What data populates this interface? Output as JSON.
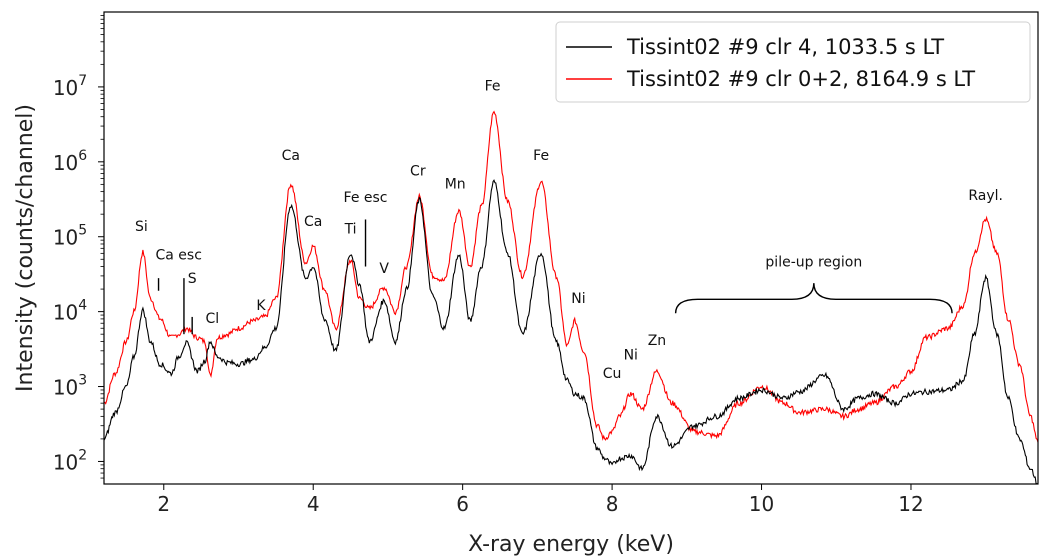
{
  "chart_data": {
    "type": "line",
    "title": "",
    "xlabel": "X-ray energy (keV)",
    "ylabel": "Intensity (counts/channel)",
    "xlim": [
      1.2,
      13.7
    ],
    "ylim": [
      50,
      100000000
    ],
    "yscale": "log",
    "grid": false,
    "legend_position": "top-right",
    "x_ticks": [
      2,
      4,
      6,
      8,
      10,
      12
    ],
    "x_tick_labels": [
      "2",
      "4",
      "6",
      "8",
      "10",
      "12"
    ],
    "y_ticks": [
      100,
      1000,
      10000,
      100000,
      1000000,
      10000000
    ],
    "y_tick_labels": [
      {
        "base": "10",
        "exp": "2"
      },
      {
        "base": "10",
        "exp": "3"
      },
      {
        "base": "10",
        "exp": "4"
      },
      {
        "base": "10",
        "exp": "5"
      },
      {
        "base": "10",
        "exp": "6"
      },
      {
        "base": "10",
        "exp": "7"
      }
    ],
    "series": [
      {
        "name": "Tissint02 #9 clr 4, 1033.5 s LT",
        "color": "#000000",
        "x": [
          1.2,
          1.35,
          1.5,
          1.6,
          1.72,
          1.82,
          1.95,
          2.1,
          2.2,
          2.3,
          2.45,
          2.55,
          2.62,
          2.72,
          2.85,
          3.0,
          3.2,
          3.35,
          3.5,
          3.7,
          3.9,
          4.0,
          4.15,
          4.3,
          4.5,
          4.62,
          4.75,
          4.95,
          5.1,
          5.25,
          5.42,
          5.6,
          5.75,
          5.95,
          6.1,
          6.25,
          6.42,
          6.6,
          6.8,
          7.05,
          7.25,
          7.4,
          7.5,
          7.62,
          7.8,
          7.9,
          8.0,
          8.1,
          8.25,
          8.4,
          8.6,
          8.8,
          9.1,
          9.4,
          9.7,
          10.0,
          10.3,
          10.5,
          10.85,
          11.1,
          11.3,
          11.5,
          11.8,
          12.0,
          12.2,
          12.5,
          12.7,
          12.85,
          13.0,
          13.15,
          13.3,
          13.45,
          13.6,
          13.7
        ],
        "y": [
          200,
          450,
          1000,
          2500,
          10500,
          4000,
          2000,
          1500,
          2500,
          3800,
          1600,
          2200,
          4000,
          2500,
          2100,
          2000,
          2300,
          3300,
          6000,
          260000,
          28000,
          40000,
          8000,
          3000,
          60000,
          23000,
          4000,
          14000,
          4000,
          20000,
          310000,
          16000,
          6000,
          56000,
          7500,
          40000,
          540000,
          60000,
          5000,
          60000,
          4000,
          1200,
          800,
          700,
          150,
          110,
          90,
          110,
          120,
          80,
          400,
          160,
          300,
          400,
          700,
          900,
          700,
          850,
          1400,
          500,
          700,
          800,
          600,
          800,
          850,
          900,
          1200,
          5000,
          28000,
          5000,
          700,
          200,
          80,
          50
        ]
      },
      {
        "name": "Tissint02 #9 clr 0+2, 8164.9 s LT",
        "color": "#ff0000",
        "x": [
          1.2,
          1.35,
          1.5,
          1.6,
          1.72,
          1.82,
          1.95,
          2.1,
          2.2,
          2.3,
          2.45,
          2.55,
          2.62,
          2.72,
          2.85,
          3.0,
          3.2,
          3.35,
          3.5,
          3.7,
          3.9,
          4.0,
          4.15,
          4.3,
          4.5,
          4.62,
          4.75,
          4.95,
          5.1,
          5.25,
          5.42,
          5.6,
          5.75,
          5.95,
          6.1,
          6.25,
          6.42,
          6.6,
          6.8,
          7.05,
          7.25,
          7.4,
          7.5,
          7.62,
          7.8,
          7.9,
          8.0,
          8.1,
          8.25,
          8.4,
          8.6,
          8.8,
          9.1,
          9.4,
          9.7,
          10.0,
          10.3,
          10.5,
          10.85,
          11.1,
          11.3,
          11.5,
          11.8,
          12.0,
          12.2,
          12.5,
          12.7,
          12.85,
          13.0,
          13.15,
          13.3,
          13.45,
          13.6,
          13.7
        ],
        "y": [
          600,
          1500,
          4000,
          10000,
          62000,
          15000,
          8000,
          4500,
          5000,
          6000,
          4500,
          4000,
          1400,
          4500,
          5000,
          6000,
          7500,
          8500,
          15000,
          500000,
          45000,
          75000,
          20000,
          6000,
          48000,
          15000,
          11000,
          21000,
          10000,
          40000,
          340000,
          30000,
          26000,
          220000,
          40000,
          250000,
          4600000,
          300000,
          30000,
          540000,
          30000,
          3500,
          7500,
          3000,
          300,
          200,
          250,
          400,
          800,
          500,
          1600,
          600,
          250,
          220,
          600,
          1000,
          600,
          450,
          500,
          400,
          500,
          600,
          1000,
          1600,
          4500,
          6000,
          12000,
          60000,
          170000,
          60000,
          8000,
          2000,
          400,
          180
        ]
      }
    ],
    "annotations": [
      {
        "text": "Si",
        "x": 1.7,
        "y": 120000
      },
      {
        "text": "Ca esc",
        "x": 2.2,
        "y": 50000
      },
      {
        "text": "S",
        "x": 2.38,
        "y": 24000
      },
      {
        "text": "Cl",
        "x": 2.65,
        "y": 7000
      },
      {
        "text": "K",
        "x": 3.3,
        "y": 10500
      },
      {
        "text": "Ca",
        "x": 3.7,
        "y": 1050000
      },
      {
        "text": "Ca",
        "x": 4.0,
        "y": 140000
      },
      {
        "text": "Fe esc",
        "x": 4.7,
        "y": 290000
      },
      {
        "text": "Ti",
        "x": 4.5,
        "y": 110000
      },
      {
        "text": "V",
        "x": 4.95,
        "y": 33000
      },
      {
        "text": "Cr",
        "x": 5.4,
        "y": 660000
      },
      {
        "text": "Mn",
        "x": 5.9,
        "y": 440000
      },
      {
        "text": "Fe",
        "x": 6.4,
        "y": 9000000
      },
      {
        "text": "Fe",
        "x": 7.05,
        "y": 1050000
      },
      {
        "text": "Ni",
        "x": 7.55,
        "y": 13000
      },
      {
        "text": "Cu",
        "x": 8.0,
        "y": 1300
      },
      {
        "text": "Ni",
        "x": 8.25,
        "y": 2300
      },
      {
        "text": "Zn",
        "x": 8.6,
        "y": 3600
      },
      {
        "text": "Rayl.",
        "x": 13.0,
        "y": 310000
      },
      {
        "text": "pile-up region",
        "x": 10.7,
        "y": 40000
      }
    ]
  }
}
